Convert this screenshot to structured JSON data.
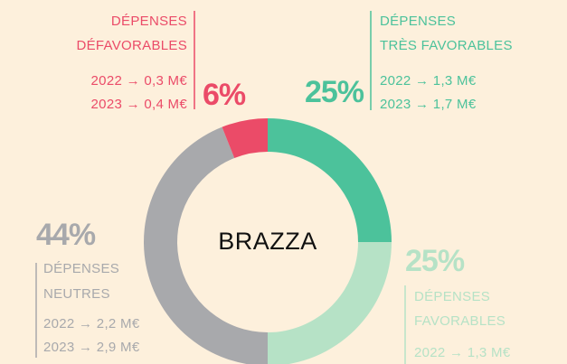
{
  "chart_data": {
    "type": "pie",
    "donut": true,
    "center_label": "BRAZZA",
    "categories": [
      [
        "DÉPENSES",
        "TRÈS FAVORABLES"
      ],
      [
        "DÉPENSES",
        "FAVORABLES"
      ],
      [
        "DÉPENSES",
        "NEUTRES"
      ],
      [
        "DÉPENSES",
        "DÉFAVORABLES"
      ]
    ],
    "values": [
      25,
      25,
      44,
      6
    ],
    "value_labels": [
      "25%",
      "25%",
      "44%",
      "6%"
    ],
    "colors": [
      "#4cc29b",
      "#b6e2c6",
      "#a8a9ac",
      "#eb4b68"
    ],
    "details": [
      [
        "2022 → 1,3 M€",
        "2023 → 1,7 M€"
      ],
      [
        "2022 → 1,3 M€"
      ],
      [
        "2022 → 2,2 M€",
        "2023 → 2,9 M€"
      ],
      [
        "2022 → 0,3 M€",
        "2023 → 0,4 M€"
      ]
    ]
  }
}
